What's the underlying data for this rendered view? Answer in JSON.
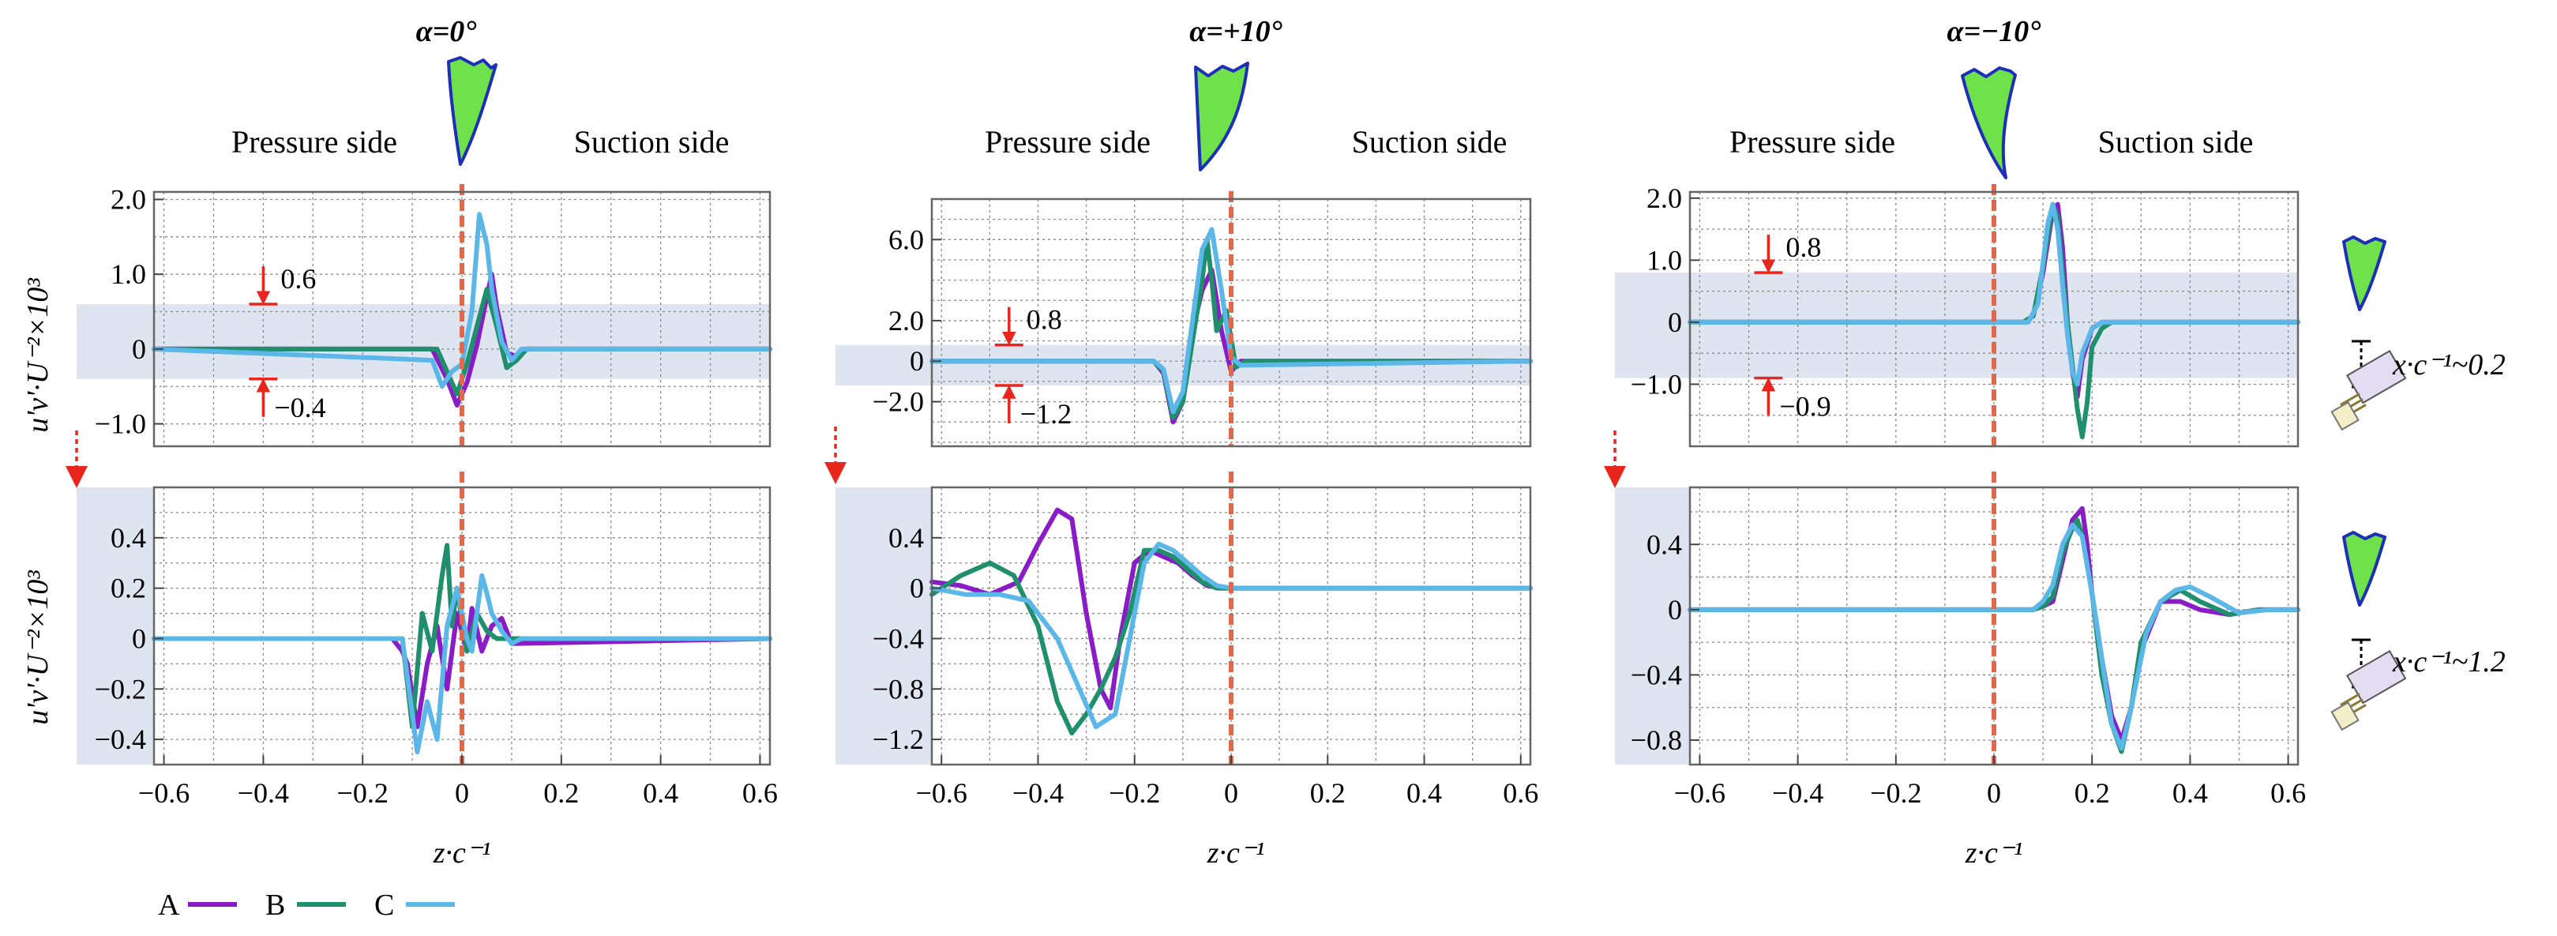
{
  "colors": {
    "A": "#8a1cc8",
    "B": "#1f8f6c",
    "C": "#5ab7e8"
  },
  "side_labels": {
    "pressure": "Pressure side",
    "suction": "Suction side"
  },
  "y_labels": {
    "top": "u'v'·U⁻²×10³",
    "bottom": "u'v'·U⁻²×10³"
  },
  "x_label": "z·c⁻¹",
  "legend": [
    {
      "name": "A",
      "color": "#8a1cc8"
    },
    {
      "name": "B",
      "color": "#1f8f6c"
    },
    {
      "name": "C",
      "color": "#5ab7e8"
    }
  ],
  "positions": [
    {
      "label": "x·c⁻¹~0.2"
    },
    {
      "label": "x·c⁻¹~1.2"
    }
  ],
  "chart_data": [
    {
      "type": "line",
      "title": "α=0°",
      "row": "top",
      "xlim": [
        -0.62,
        0.62
      ],
      "ylim": [
        -1.3,
        2.1
      ],
      "ylabel": "u'v'·U⁻²×10³",
      "xlabel": "",
      "xticks": [],
      "yticks": [
        {
          "v": 2.0,
          "l": "2.0"
        },
        {
          "v": 1.0,
          "l": "1.0"
        },
        {
          "v": 0,
          "l": "0"
        },
        {
          "v": -1.0,
          "l": "−1.0"
        }
      ],
      "band": [
        -0.4,
        0.6
      ],
      "annotations": [
        {
          "text": "0.6",
          "value": 0.6,
          "edge": "upper",
          "x": -0.4
        },
        {
          "text": "−0.4",
          "value": -0.4,
          "edge": "lower",
          "x": -0.4
        }
      ],
      "series": [
        {
          "name": "A",
          "x": [
            -0.62,
            -0.06,
            -0.03,
            -0.01,
            0.01,
            0.03,
            0.05,
            0.06,
            0.07,
            0.09,
            0.11,
            0.13,
            0.62
          ],
          "y": [
            0,
            0,
            -0.4,
            -0.75,
            -0.45,
            0.05,
            0.7,
            1.0,
            0.55,
            -0.05,
            -0.1,
            0,
            0
          ]
        },
        {
          "name": "B",
          "x": [
            -0.62,
            -0.05,
            -0.03,
            -0.01,
            0.01,
            0.03,
            0.05,
            0.07,
            0.09,
            0.11,
            0.13,
            0.62
          ],
          "y": [
            0,
            0,
            -0.3,
            -0.6,
            -0.2,
            0.3,
            0.8,
            0.3,
            -0.25,
            -0.15,
            0,
            0
          ]
        },
        {
          "name": "C",
          "x": [
            -0.62,
            -0.06,
            -0.04,
            -0.02,
            0.0,
            0.02,
            0.035,
            0.05,
            0.06,
            0.08,
            0.1,
            0.12,
            0.62
          ],
          "y": [
            0,
            -0.15,
            -0.5,
            -0.3,
            -0.2,
            0.5,
            1.8,
            1.4,
            0.8,
            0.1,
            -0.15,
            0,
            0
          ]
        }
      ]
    },
    {
      "type": "line",
      "title": "α=0°",
      "row": "bottom",
      "xlim": [
        -0.62,
        0.62
      ],
      "ylim": [
        -0.5,
        0.6
      ],
      "ylabel": "u'v'·U⁻²×10³",
      "xlabel": "z·c⁻¹",
      "xticks": [
        {
          "v": -0.6,
          "l": "−0.6"
        },
        {
          "v": -0.4,
          "l": "−0.4"
        },
        {
          "v": -0.2,
          "l": "−0.2"
        },
        {
          "v": 0,
          "l": "0"
        },
        {
          "v": 0.2,
          "l": "0.2"
        },
        {
          "v": 0.4,
          "l": "0.4"
        },
        {
          "v": 0.6,
          "l": "0.6"
        }
      ],
      "yticks": [
        {
          "v": 0.4,
          "l": "0.4"
        },
        {
          "v": 0.2,
          "l": "0.2"
        },
        {
          "v": 0,
          "l": "0"
        },
        {
          "v": -0.2,
          "l": "−0.2"
        },
        {
          "v": -0.4,
          "l": "−0.4"
        }
      ],
      "series": [
        {
          "name": "A",
          "x": [
            -0.62,
            -0.14,
            -0.12,
            -0.11,
            -0.09,
            -0.07,
            -0.05,
            -0.03,
            -0.01,
            0.01,
            0.02,
            0.04,
            0.06,
            0.08,
            0.1,
            0.62
          ],
          "y": [
            0,
            0,
            -0.05,
            -0.1,
            -0.35,
            -0.1,
            0.05,
            -0.2,
            0.1,
            -0.05,
            0.12,
            -0.05,
            0.05,
            0.08,
            -0.02,
            0
          ]
        },
        {
          "name": "B",
          "x": [
            -0.62,
            -0.12,
            -0.1,
            -0.08,
            -0.06,
            -0.04,
            -0.03,
            -0.02,
            -0.01,
            0.01,
            0.03,
            0.05,
            0.07,
            0.62
          ],
          "y": [
            0,
            0,
            -0.35,
            0.1,
            -0.05,
            0.25,
            0.37,
            0.05,
            0.2,
            -0.05,
            0.1,
            0.03,
            0,
            0
          ]
        },
        {
          "name": "C",
          "x": [
            -0.62,
            -0.12,
            -0.09,
            -0.07,
            -0.05,
            -0.03,
            -0.01,
            0.01,
            0.02,
            0.03,
            0.04,
            0.05,
            0.06,
            0.08,
            0.1,
            0.12,
            0.62
          ],
          "y": [
            0,
            0,
            -0.45,
            -0.25,
            -0.4,
            0.05,
            0.2,
            0,
            -0.05,
            0.1,
            0.25,
            0.18,
            0.1,
            0.03,
            -0.02,
            0,
            0
          ]
        }
      ]
    },
    {
      "type": "line",
      "title": "α=+10°",
      "row": "top",
      "xlim": [
        -0.62,
        0.62
      ],
      "ylim": [
        -4.2,
        8.0
      ],
      "ylabel": "",
      "xlabel": "",
      "xticks": [],
      "yticks": [
        {
          "v": 6.0,
          "l": "6.0"
        },
        {
          "v": 2.0,
          "l": "2.0"
        },
        {
          "v": 0,
          "l": "0"
        },
        {
          "v": -2.0,
          "l": "−2.0"
        }
      ],
      "band": [
        -1.2,
        0.8
      ],
      "annotations": [
        {
          "text": "0.8",
          "value": 0.8,
          "edge": "upper",
          "x": -0.46
        },
        {
          "text": "−1.2",
          "value": -1.2,
          "edge": "lower",
          "x": -0.46
        }
      ],
      "series": [
        {
          "name": "A",
          "x": [
            -0.62,
            -0.16,
            -0.14,
            -0.12,
            -0.1,
            -0.08,
            -0.06,
            -0.04,
            -0.02,
            0.0,
            0.02,
            0.62
          ],
          "y": [
            0,
            0,
            -0.6,
            -3.0,
            -2.0,
            1.5,
            3.5,
            4.5,
            1.5,
            -0.5,
            0,
            0
          ]
        },
        {
          "name": "B",
          "x": [
            -0.62,
            -0.16,
            -0.14,
            -0.12,
            -0.1,
            -0.08,
            -0.06,
            -0.05,
            -0.04,
            -0.03,
            -0.01,
            0.01,
            0.03,
            0.62
          ],
          "y": [
            0,
            0,
            -0.5,
            -2.8,
            -2.0,
            1.0,
            4.0,
            6.0,
            4.0,
            1.5,
            2.5,
            -0.3,
            0,
            0
          ]
        },
        {
          "name": "C",
          "x": [
            -0.62,
            -0.16,
            -0.14,
            -0.12,
            -0.1,
            -0.08,
            -0.06,
            -0.04,
            -0.02,
            0.0,
            0.02,
            0.62
          ],
          "y": [
            0,
            0,
            -0.4,
            -2.5,
            -1.5,
            2.0,
            5.5,
            6.5,
            3.5,
            0.2,
            -0.2,
            0
          ]
        }
      ]
    },
    {
      "type": "line",
      "title": "α=+10°",
      "row": "bottom",
      "xlim": [
        -0.62,
        0.62
      ],
      "ylim": [
        -1.4,
        0.8
      ],
      "ylabel": "",
      "xlabel": "z·c⁻¹",
      "xticks": [
        {
          "v": -0.6,
          "l": "−0.6"
        },
        {
          "v": -0.4,
          "l": "−0.4"
        },
        {
          "v": -0.2,
          "l": "−0.2"
        },
        {
          "v": 0,
          "l": "0"
        },
        {
          "v": 0.2,
          "l": "0.2"
        },
        {
          "v": 0.4,
          "l": "0.4"
        },
        {
          "v": 0.6,
          "l": "0.6"
        }
      ],
      "yticks": [
        {
          "v": 0.4,
          "l": "0.4"
        },
        {
          "v": 0,
          "l": "0"
        },
        {
          "v": -0.4,
          "l": "−0.4"
        },
        {
          "v": -0.8,
          "l": "−0.8"
        },
        {
          "v": -1.2,
          "l": "−1.2"
        }
      ],
      "series": [
        {
          "name": "A",
          "x": [
            -0.62,
            -0.56,
            -0.5,
            -0.44,
            -0.4,
            -0.36,
            -0.33,
            -0.3,
            -0.27,
            -0.25,
            -0.23,
            -0.2,
            -0.17,
            -0.14,
            -0.11,
            -0.08,
            -0.05,
            -0.02,
            0.02,
            0.62
          ],
          "y": [
            0.05,
            0.02,
            -0.05,
            0.05,
            0.35,
            0.62,
            0.55,
            -0.2,
            -0.8,
            -0.95,
            -0.4,
            0.2,
            0.3,
            0.25,
            0.2,
            0.1,
            0.02,
            0,
            0,
            0
          ]
        },
        {
          "name": "B",
          "x": [
            -0.62,
            -0.56,
            -0.5,
            -0.45,
            -0.4,
            -0.36,
            -0.33,
            -0.3,
            -0.27,
            -0.24,
            -0.21,
            -0.18,
            -0.15,
            -0.12,
            -0.09,
            -0.06,
            -0.03,
            0.0,
            0.62
          ],
          "y": [
            -0.05,
            0.1,
            0.2,
            0.1,
            -0.3,
            -0.9,
            -1.15,
            -1.0,
            -0.8,
            -0.55,
            -0.2,
            0.3,
            0.3,
            0.25,
            0.15,
            0.05,
            0,
            0,
            0
          ]
        },
        {
          "name": "C",
          "x": [
            -0.62,
            -0.55,
            -0.48,
            -0.42,
            -0.36,
            -0.32,
            -0.28,
            -0.24,
            -0.21,
            -0.18,
            -0.15,
            -0.12,
            -0.09,
            -0.06,
            -0.03,
            0.0,
            0.62
          ],
          "y": [
            0,
            -0.05,
            -0.05,
            -0.1,
            -0.4,
            -0.75,
            -1.1,
            -1.0,
            -0.4,
            0.2,
            0.35,
            0.3,
            0.2,
            0.1,
            0.02,
            0,
            0
          ]
        }
      ]
    },
    {
      "type": "line",
      "title": "α=−10°",
      "row": "top",
      "xlim": [
        -0.62,
        0.62
      ],
      "ylim": [
        -2.0,
        2.1
      ],
      "ylabel": "",
      "xlabel": "",
      "xticks": [],
      "yticks": [
        {
          "v": 2.0,
          "l": "2.0"
        },
        {
          "v": 1.0,
          "l": "1.0"
        },
        {
          "v": 0,
          "l": "0"
        },
        {
          "v": -1.0,
          "l": "−1.0"
        }
      ],
      "band": [
        -0.9,
        0.8
      ],
      "annotations": [
        {
          "text": "0.8",
          "value": 0.8,
          "edge": "upper",
          "x": -0.46
        },
        {
          "text": "−0.9",
          "value": -0.9,
          "edge": "lower",
          "x": -0.46
        }
      ],
      "series": [
        {
          "name": "A",
          "x": [
            -0.62,
            0.06,
            0.08,
            0.1,
            0.12,
            0.13,
            0.14,
            0.15,
            0.16,
            0.17,
            0.18,
            0.2,
            0.22,
            0.62
          ],
          "y": [
            0,
            0,
            0.1,
            0.8,
            1.8,
            1.9,
            1.2,
            0,
            -0.8,
            -1.2,
            -0.6,
            -0.1,
            0,
            0
          ]
        },
        {
          "name": "B",
          "x": [
            -0.62,
            0.06,
            0.08,
            0.1,
            0.12,
            0.13,
            0.14,
            0.15,
            0.16,
            0.17,
            0.18,
            0.19,
            0.2,
            0.22,
            0.24,
            0.62
          ],
          "y": [
            0,
            0,
            0.1,
            0.9,
            1.9,
            1.7,
            0.8,
            0,
            -0.7,
            -1.4,
            -1.85,
            -1.3,
            -0.4,
            -0.1,
            0,
            0
          ]
        },
        {
          "name": "C",
          "x": [
            -0.62,
            0.07,
            0.09,
            0.11,
            0.12,
            0.13,
            0.14,
            0.15,
            0.16,
            0.17,
            0.18,
            0.2,
            0.22,
            0.62
          ],
          "y": [
            0,
            0,
            0.3,
            1.6,
            1.9,
            1.5,
            0.6,
            -0.2,
            -0.8,
            -1.0,
            -0.5,
            -0.1,
            0,
            0
          ]
        }
      ]
    },
    {
      "type": "line",
      "title": "α=−10°",
      "row": "bottom",
      "xlim": [
        -0.62,
        0.62
      ],
      "ylim": [
        -0.95,
        0.75
      ],
      "ylabel": "",
      "xlabel": "z·c⁻¹",
      "xticks": [
        {
          "v": -0.6,
          "l": "−0.6"
        },
        {
          "v": -0.4,
          "l": "−0.4"
        },
        {
          "v": -0.2,
          "l": "−0.2"
        },
        {
          "v": 0,
          "l": "0"
        },
        {
          "v": 0.2,
          "l": "0.2"
        },
        {
          "v": 0.4,
          "l": "0.4"
        },
        {
          "v": 0.6,
          "l": "0.6"
        }
      ],
      "yticks": [
        {
          "v": 0.4,
          "l": "0.4"
        },
        {
          "v": 0,
          "l": "0"
        },
        {
          "v": -0.4,
          "l": "−0.4"
        },
        {
          "v": -0.8,
          "l": "−0.8"
        }
      ],
      "series": [
        {
          "name": "A",
          "x": [
            -0.62,
            0.08,
            0.1,
            0.12,
            0.14,
            0.16,
            0.18,
            0.19,
            0.2,
            0.22,
            0.24,
            0.26,
            0.28,
            0.3,
            0.34,
            0.38,
            0.42,
            0.48,
            0.54,
            0.6,
            0.62
          ],
          "y": [
            0,
            0,
            0.02,
            0.05,
            0.3,
            0.55,
            0.62,
            0.4,
            0.1,
            -0.3,
            -0.65,
            -0.8,
            -0.6,
            -0.25,
            0.05,
            0.05,
            0,
            -0.03,
            0,
            0,
            0
          ]
        },
        {
          "name": "B",
          "x": [
            -0.62,
            0.08,
            0.1,
            0.12,
            0.14,
            0.16,
            0.17,
            0.18,
            0.2,
            0.22,
            0.24,
            0.26,
            0.28,
            0.3,
            0.34,
            0.38,
            0.42,
            0.48,
            0.54,
            0.62
          ],
          "y": [
            0,
            0,
            0.02,
            0.08,
            0.35,
            0.5,
            0.55,
            0.45,
            0.1,
            -0.4,
            -0.7,
            -0.87,
            -0.6,
            -0.2,
            0.05,
            0.12,
            0.05,
            -0.03,
            0,
            0
          ]
        },
        {
          "name": "C",
          "x": [
            -0.62,
            0.08,
            0.1,
            0.12,
            0.14,
            0.16,
            0.18,
            0.2,
            0.22,
            0.24,
            0.26,
            0.28,
            0.31,
            0.34,
            0.37,
            0.4,
            0.44,
            0.5,
            0.56,
            0.62
          ],
          "y": [
            0,
            0,
            0.05,
            0.15,
            0.4,
            0.52,
            0.45,
            0.1,
            -0.3,
            -0.7,
            -0.85,
            -0.6,
            -0.15,
            0.05,
            0.12,
            0.14,
            0.08,
            -0.02,
            0,
            0
          ]
        }
      ]
    }
  ]
}
